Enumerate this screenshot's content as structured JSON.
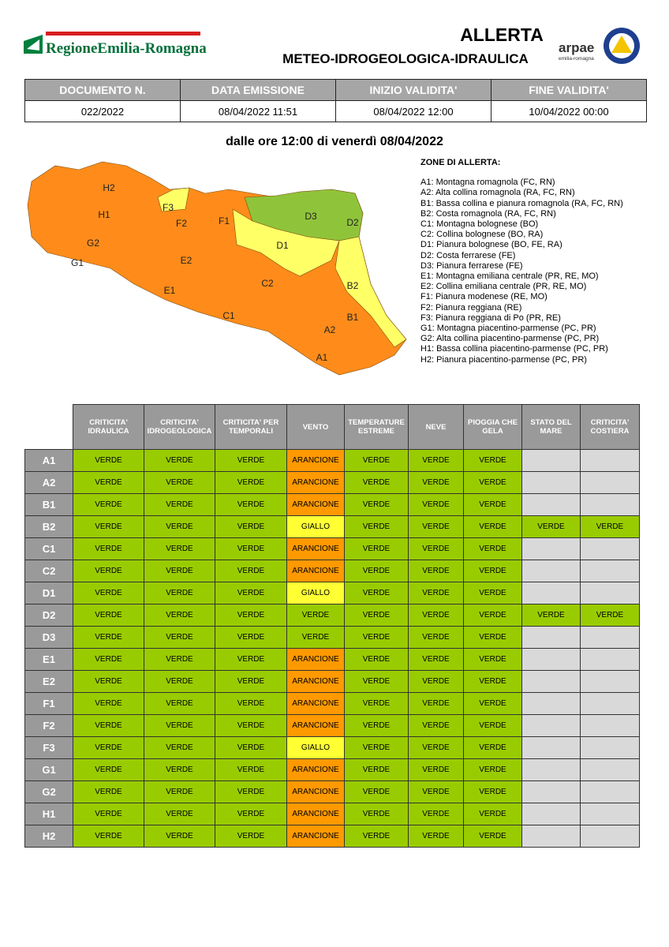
{
  "header": {
    "logo_text": "RegioneEmilia-Romagna",
    "title": "ALLERTA",
    "subtitle": "METEO-IDROGEOLOGICA-IDRAULICA",
    "arpae": "arpae",
    "arpae_sub": "emilia-romagna"
  },
  "info": {
    "headers": [
      "DOCUMENTO N.",
      "DATA EMISSIONE",
      "INIZIO VALIDITA'",
      "FINE VALIDITA'"
    ],
    "values": [
      "022/2022",
      "08/04/2022 11:51",
      "08/04/2022 12:00",
      "10/04/2022 00:00"
    ]
  },
  "period": "dalle ore 12:00 di venerdì 08/04/2022",
  "map": {
    "labels": [
      "H2",
      "F3",
      "H1",
      "F2",
      "F1",
      "D3",
      "D2",
      "G2",
      "D1",
      "G1",
      "E2",
      "B2",
      "C2",
      "E1",
      "B1",
      "C1",
      "A2",
      "A1"
    ]
  },
  "legend": {
    "title": "ZONE DI ALLERTA:",
    "items": [
      "A1: Montagna romagnola (FC, RN)",
      "A2: Alta collina romagnola (RA, FC, RN)",
      "B1: Bassa collina e pianura romagnola (RA, FC, RN)",
      "B2: Costa romagnola (RA, FC, RN)",
      "C1: Montagna bolognese (BO)",
      "C2: Collina bolognese (BO, RA)",
      "D1: Pianura bolognese (BO, FE, RA)",
      "D2: Costa ferrarese (FE)",
      "D3: Pianura ferrarese (FE)",
      "E1: Montagna emiliana centrale (PR, RE, MO)",
      "E2: Collina emiliana centrale (PR, RE, MO)",
      "F1: Pianura modenese (RE, MO)",
      "F2: Pianura reggiana (RE)",
      "F3: Pianura reggiana di Po (PR, RE)",
      "G1: Montagna piacentino-parmense (PC, PR)",
      "G2: Alta collina piacentino-parmense (PC, PR)",
      "H1: Bassa collina piacentino-parmense (PC, PR)",
      "H2: Pianura piacentino-parmense (PC, PR)"
    ]
  },
  "table": {
    "headers": [
      "CRITICITA' IDRAULICA",
      "CRITICITA' IDROGEOLOGICA",
      "CRITICITA' PER TEMPORALI",
      "VENTO",
      "TEMPERATURE ESTREME",
      "NEVE",
      "PIOGGIA CHE GELA",
      "STATO DEL MARE",
      "CRITICITA' COSTIERA"
    ],
    "rows": [
      {
        "zone": "A1",
        "cells": [
          "VERDE",
          "VERDE",
          "VERDE",
          "ARANCIONE",
          "VERDE",
          "VERDE",
          "VERDE",
          null,
          null
        ]
      },
      {
        "zone": "A2",
        "cells": [
          "VERDE",
          "VERDE",
          "VERDE",
          "ARANCIONE",
          "VERDE",
          "VERDE",
          "VERDE",
          null,
          null
        ]
      },
      {
        "zone": "B1",
        "cells": [
          "VERDE",
          "VERDE",
          "VERDE",
          "ARANCIONE",
          "VERDE",
          "VERDE",
          "VERDE",
          null,
          null
        ]
      },
      {
        "zone": "B2",
        "cells": [
          "VERDE",
          "VERDE",
          "VERDE",
          "GIALLO",
          "VERDE",
          "VERDE",
          "VERDE",
          "VERDE",
          "VERDE"
        ]
      },
      {
        "zone": "C1",
        "cells": [
          "VERDE",
          "VERDE",
          "VERDE",
          "ARANCIONE",
          "VERDE",
          "VERDE",
          "VERDE",
          null,
          null
        ]
      },
      {
        "zone": "C2",
        "cells": [
          "VERDE",
          "VERDE",
          "VERDE",
          "ARANCIONE",
          "VERDE",
          "VERDE",
          "VERDE",
          null,
          null
        ]
      },
      {
        "zone": "D1",
        "cells": [
          "VERDE",
          "VERDE",
          "VERDE",
          "GIALLO",
          "VERDE",
          "VERDE",
          "VERDE",
          null,
          null
        ]
      },
      {
        "zone": "D2",
        "cells": [
          "VERDE",
          "VERDE",
          "VERDE",
          "VERDE",
          "VERDE",
          "VERDE",
          "VERDE",
          "VERDE",
          "VERDE"
        ]
      },
      {
        "zone": "D3",
        "cells": [
          "VERDE",
          "VERDE",
          "VERDE",
          "VERDE",
          "VERDE",
          "VERDE",
          "VERDE",
          null,
          null
        ]
      },
      {
        "zone": "E1",
        "cells": [
          "VERDE",
          "VERDE",
          "VERDE",
          "ARANCIONE",
          "VERDE",
          "VERDE",
          "VERDE",
          null,
          null
        ]
      },
      {
        "zone": "E2",
        "cells": [
          "VERDE",
          "VERDE",
          "VERDE",
          "ARANCIONE",
          "VERDE",
          "VERDE",
          "VERDE",
          null,
          null
        ]
      },
      {
        "zone": "F1",
        "cells": [
          "VERDE",
          "VERDE",
          "VERDE",
          "ARANCIONE",
          "VERDE",
          "VERDE",
          "VERDE",
          null,
          null
        ]
      },
      {
        "zone": "F2",
        "cells": [
          "VERDE",
          "VERDE",
          "VERDE",
          "ARANCIONE",
          "VERDE",
          "VERDE",
          "VERDE",
          null,
          null
        ]
      },
      {
        "zone": "F3",
        "cells": [
          "VERDE",
          "VERDE",
          "VERDE",
          "GIALLO",
          "VERDE",
          "VERDE",
          "VERDE",
          null,
          null
        ]
      },
      {
        "zone": "G1",
        "cells": [
          "VERDE",
          "VERDE",
          "VERDE",
          "ARANCIONE",
          "VERDE",
          "VERDE",
          "VERDE",
          null,
          null
        ]
      },
      {
        "zone": "G2",
        "cells": [
          "VERDE",
          "VERDE",
          "VERDE",
          "ARANCIONE",
          "VERDE",
          "VERDE",
          "VERDE",
          null,
          null
        ]
      },
      {
        "zone": "H1",
        "cells": [
          "VERDE",
          "VERDE",
          "VERDE",
          "ARANCIONE",
          "VERDE",
          "VERDE",
          "VERDE",
          null,
          null
        ]
      },
      {
        "zone": "H2",
        "cells": [
          "VERDE",
          "VERDE",
          "VERDE",
          "ARANCIONE",
          "VERDE",
          "VERDE",
          "VERDE",
          null,
          null
        ]
      }
    ]
  }
}
